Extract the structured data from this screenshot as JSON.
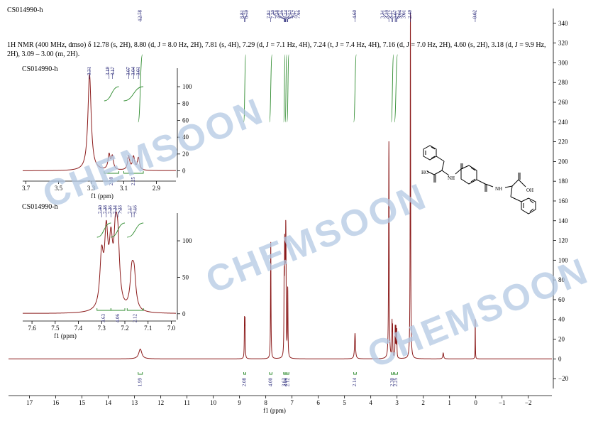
{
  "sample_id": "CS014990-h",
  "nmr_description": "1H NMR (400 MHz, dmso) δ 12.78 (s, 2H), 8.80 (d, J = 8.0 Hz, 2H), 7.81 (s, 4H), 7.29 (d, J = 7.1 Hz, 4H), 7.24 (t, J = 7.4 Hz, 4H), 7.16 (d, J = 7.0 Hz, 2H), 4.60 (s, 2H), 3.18 (d, J = 9.9 Hz, 2H), 3.09 – 3.00 (m, 2H).",
  "watermark": "CHEMSOON",
  "molecule_labels": {
    "oh1": "HO",
    "nh1": "NH",
    "nh2": "NH",
    "oh2": "OH"
  },
  "colors": {
    "spectrum": "#8b1a1a",
    "integral": "#2e8b2e",
    "peak_label": "#2a2a7a",
    "axis": "#000000",
    "watermark": "#b3c9e3"
  },
  "chart_data": [
    {
      "type": "line",
      "xlabel": "f1 (ppm)",
      "x_reversed": true,
      "xlim": [
        17.8,
        -2.9
      ],
      "ylim": [
        -30,
        355
      ],
      "x_ticks": [
        "17",
        "16",
        "15",
        "14",
        "13",
        "12",
        "11",
        "10",
        "9",
        "8",
        "7",
        "6",
        "5",
        "4",
        "3",
        "2",
        "1",
        "0",
        "−1",
        "−2"
      ],
      "x_tick_values": [
        17,
        16,
        15,
        14,
        13,
        12,
        11,
        10,
        9,
        8,
        7,
        6,
        5,
        4,
        3,
        2,
        1,
        0,
        -1,
        -2
      ],
      "y_ticks": [
        "340",
        "320",
        "300",
        "280",
        "260",
        "240",
        "220",
        "200",
        "180",
        "160",
        "140",
        "120",
        "100",
        "80",
        "60",
        "40",
        "20",
        "0",
        "−20"
      ],
      "y_tick_values": [
        340,
        320,
        300,
        280,
        260,
        240,
        220,
        200,
        180,
        160,
        140,
        120,
        100,
        80,
        60,
        40,
        20,
        0,
        -20
      ],
      "peaks": [
        {
          "ppm": 12.78,
          "height": 10,
          "width": 0.07
        },
        {
          "ppm": 8.81,
          "height": 37,
          "width": 0.009
        },
        {
          "ppm": 8.79,
          "height": 37,
          "width": 0.009
        },
        {
          "ppm": 7.81,
          "height": 120,
          "width": 0.01
        },
        {
          "ppm": 7.3,
          "height": 70,
          "width": 0.009
        },
        {
          "ppm": 7.28,
          "height": 96,
          "width": 0.009
        },
        {
          "ppm": 7.26,
          "height": 78,
          "width": 0.009
        },
        {
          "ppm": 7.24,
          "height": 86,
          "width": 0.009
        },
        {
          "ppm": 7.23,
          "height": 74,
          "width": 0.009
        },
        {
          "ppm": 7.17,
          "height": 46,
          "width": 0.009
        },
        {
          "ppm": 7.16,
          "height": 44,
          "width": 0.009
        },
        {
          "ppm": 4.6,
          "height": 26,
          "width": 0.02
        },
        {
          "ppm": 3.31,
          "height": 220,
          "width": 0.012
        },
        {
          "ppm": 3.19,
          "height": 34,
          "width": 0.008
        },
        {
          "ppm": 3.17,
          "height": 30,
          "width": 0.008
        },
        {
          "ppm": 3.07,
          "height": 32,
          "width": 0.008
        },
        {
          "ppm": 3.04,
          "height": 30,
          "width": 0.008
        },
        {
          "ppm": 3.01,
          "height": 28,
          "width": 0.008
        },
        {
          "ppm": 2.49,
          "height": 355,
          "width": 0.01
        },
        {
          "ppm": 1.24,
          "height": 6,
          "width": 0.02
        },
        {
          "ppm": 0.02,
          "height": 42,
          "width": 0.006
        }
      ],
      "peak_labels": [
        "12.78",
        "8.81",
        "8.79",
        "7.81",
        "7.30",
        "7.28",
        "7.26",
        "7.24",
        "7.23",
        "7.17",
        "7.16",
        "4.60",
        "3.31",
        "3.19",
        "3.17",
        "3.07",
        "3.04",
        "3.01",
        "2.49",
        "0.02"
      ],
      "peak_label_ppm": [
        12.78,
        8.81,
        8.79,
        7.81,
        7.3,
        7.28,
        7.26,
        7.24,
        7.23,
        7.17,
        7.16,
        4.6,
        3.31,
        3.19,
        3.17,
        3.07,
        3.04,
        3.01,
        2.49,
        0.02
      ],
      "integrals": [
        {
          "from": 12.86,
          "to": 12.7,
          "value": "1.99"
        },
        {
          "from": 8.84,
          "to": 8.76,
          "value": "2.08"
        },
        {
          "from": 7.86,
          "to": 7.76,
          "value": "4.00"
        },
        {
          "from": 7.32,
          "to": 7.26,
          "value": "3.63"
        },
        {
          "from": 7.26,
          "to": 7.2,
          "value": "4.06"
        },
        {
          "from": 7.19,
          "to": 7.12,
          "value": "2.12"
        },
        {
          "from": 4.65,
          "to": 4.55,
          "value": "2.14"
        },
        {
          "from": 3.22,
          "to": 3.13,
          "value": "2.30"
        },
        {
          "from": 3.1,
          "to": 2.98,
          "value": "2.25"
        }
      ]
    },
    {
      "type": "line",
      "title": "CS014990-h",
      "xlabel": "f1 (ppm)",
      "x_reversed": true,
      "xlim": [
        3.72,
        2.78
      ],
      "ylim": [
        -8,
        122
      ],
      "x_ticks": [
        "3.7",
        "3.5",
        "3.3",
        "3.1",
        "2.9"
      ],
      "x_tick_values": [
        3.7,
        3.5,
        3.3,
        3.1,
        2.9
      ],
      "y_ticks": [
        "100",
        "80",
        "60",
        "40",
        "20",
        "0"
      ],
      "y_tick_values": [
        100,
        80,
        60,
        40,
        20,
        0
      ],
      "peak_labels": [
        "3.31",
        "3.19",
        "3.17",
        "3.07",
        "3.04",
        "3.01"
      ],
      "peak_label_ppm": [
        3.31,
        3.19,
        3.17,
        3.07,
        3.04,
        3.01
      ],
      "integrals": [
        {
          "from": 3.22,
          "to": 3.13,
          "value": "2.30"
        },
        {
          "from": 3.1,
          "to": 2.98,
          "value": "2.25"
        }
      ]
    },
    {
      "type": "line",
      "title": "CS014990-h",
      "xlabel": "f1 (ppm)",
      "x_reversed": true,
      "xlim": [
        7.64,
        6.98
      ],
      "ylim": [
        -8,
        138
      ],
      "x_ticks": [
        "7.6",
        "7.5",
        "7.4",
        "7.3",
        "7.2",
        "7.1",
        "7.0"
      ],
      "x_tick_values": [
        7.6,
        7.5,
        7.4,
        7.3,
        7.2,
        7.1,
        7.0
      ],
      "y_ticks": [
        "100",
        "50",
        "0"
      ],
      "y_tick_values": [
        100,
        50,
        0
      ],
      "peak_labels": [
        "7.30",
        "7.28",
        "7.26",
        "7.24",
        "7.23",
        "7.17",
        "7.16"
      ],
      "peak_label_ppm": [
        7.3,
        7.28,
        7.26,
        7.24,
        7.23,
        7.17,
        7.16
      ],
      "integrals": [
        {
          "from": 7.32,
          "to": 7.26,
          "value": "3.63"
        },
        {
          "from": 7.26,
          "to": 7.2,
          "value": "4.06"
        },
        {
          "from": 7.19,
          "to": 7.12,
          "value": "2.12"
        }
      ]
    }
  ]
}
